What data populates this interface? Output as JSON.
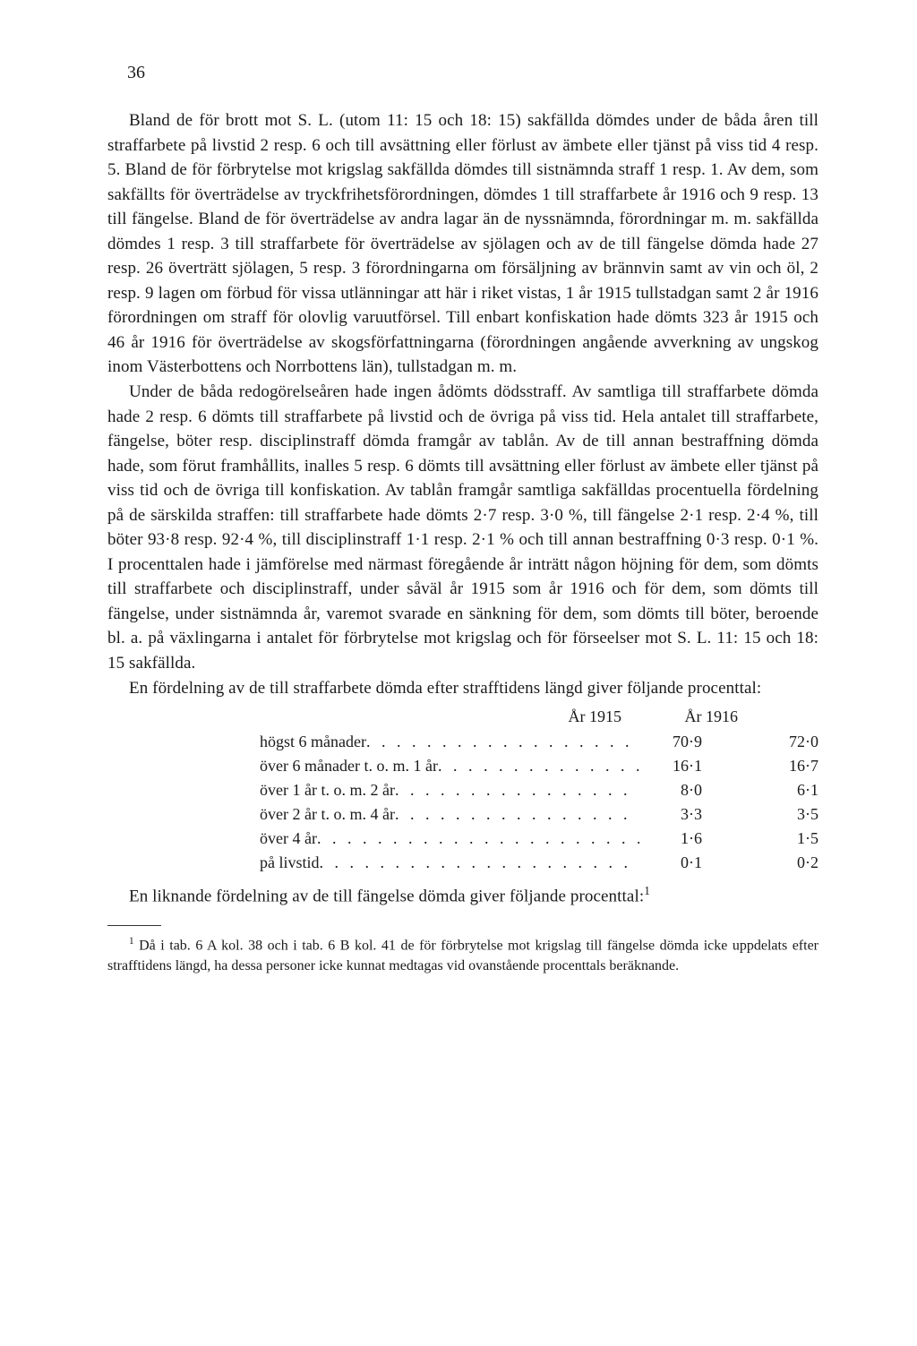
{
  "page_number": "36",
  "paragraphs": {
    "p1": "Bland de för brott mot S. L. (utom 11: 15 och 18: 15) sakfällda dömdes under de båda åren till straffarbete på livstid 2 resp. 6 och till avsättning eller förlust av ämbete eller tjänst på viss tid 4 resp. 5. Bland de för förbrytelse mot krigslag sakfällda dömdes till sistnämnda straff 1 resp. 1. Av dem, som sakfällts för överträdelse av tryckfrihetsförordningen, dömdes 1 till straffarbete år 1916 och 9 resp. 13 till fängelse. Bland de för överträdelse av andra lagar än de nyssnämnda, förordningar m. m. sakfällda dömdes 1 resp. 3 till straffarbete för överträdelse av sjölagen och av de till fängelse dömda hade 27 resp. 26 överträtt sjölagen, 5 resp. 3 förordningarna om försäljning av brännvin samt av vin och öl, 2 resp. 9 lagen om förbud för vissa utlänningar att här i riket vistas, 1 år 1915 tullstadgan samt 2 år 1916 förordningen om straff för olovlig varuutförsel. Till enbart konfiskation hade dömts 323 år 1915 och 46 år 1916 för överträdelse av skogsförfattningarna (förordningen angående avverkning av ungskog inom Västerbottens och Norrbottens län), tullstadgan m. m.",
    "p2": "Under de båda redogörelseåren hade ingen ådömts dödsstraff. Av samtliga till straffarbete dömda hade 2 resp. 6 dömts till straffarbete på livstid och de övriga på viss tid. Hela antalet till straffarbete, fängelse, böter resp. disciplinstraff dömda framgår av tablån. Av de till annan bestraffning dömda hade, som förut framhållits, inalles 5 resp. 6 dömts till avsättning eller förlust av ämbete eller tjänst på viss tid och de övriga till konfiskation. Av tablån framgår samtliga sakfälldas procentuella fördelning på de särskilda straffen: till straffarbete hade dömts 2·7 resp. 3·0 %, till fängelse 2·1 resp. 2·4 %, till böter 93·8 resp. 92·4 %, till disciplinstraff 1·1 resp. 2·1 % och till annan bestraffning 0·3 resp. 0·1 %. I procenttalen hade i jämförelse med närmast föregående år inträtt någon höjning för dem, som dömts till straffarbete och disciplinstraff, under såväl år 1915 som år 1916 och för dem, som dömts till fängelse, under sistnämnda år, varemot svarade en sänkning för dem, som dömts till böter, beroende bl. a. på växlingarna i antalet för förbrytelse mot krigslag och för förseelser mot S. L. 11: 15 och 18: 15 sakfällda.",
    "p3": "En fördelning av de till straffarbete dömda efter strafftidens längd giver följande procenttal:",
    "p4_pre": "En liknande fördelning av de till fängelse dömda giver följande procenttal:",
    "p4_sup": "1"
  },
  "table": {
    "header_year1": "År 1915",
    "header_year2": "År 1916",
    "rows": [
      {
        "label": "högst 6 månader",
        "v1": "70·9",
        "v2": "72·0"
      },
      {
        "label": "över 6 månader t. o. m. 1 år",
        "v1": "16·1",
        "v2": "16·7"
      },
      {
        "label": "över 1 år t. o. m. 2 år",
        "v1": "8·0",
        "v2": "6·1"
      },
      {
        "label": "över 2 år t. o. m. 4 år",
        "v1": "3·3",
        "v2": "3·5"
      },
      {
        "label": "över 4 år",
        "v1": "1·6",
        "v2": "1·5"
      },
      {
        "label": "på livstid",
        "v1": "0·1",
        "v2": "0·2"
      }
    ]
  },
  "footnote": {
    "marker": "1",
    "text": "Då i tab. 6 A kol. 38 och i tab. 6 B kol. 41 de för förbrytelse mot krigslag till fängelse dömda icke uppdelats efter strafftidens längd, ha dessa personer icke kunnat medtagas vid ovanstående procenttals beräknande."
  }
}
